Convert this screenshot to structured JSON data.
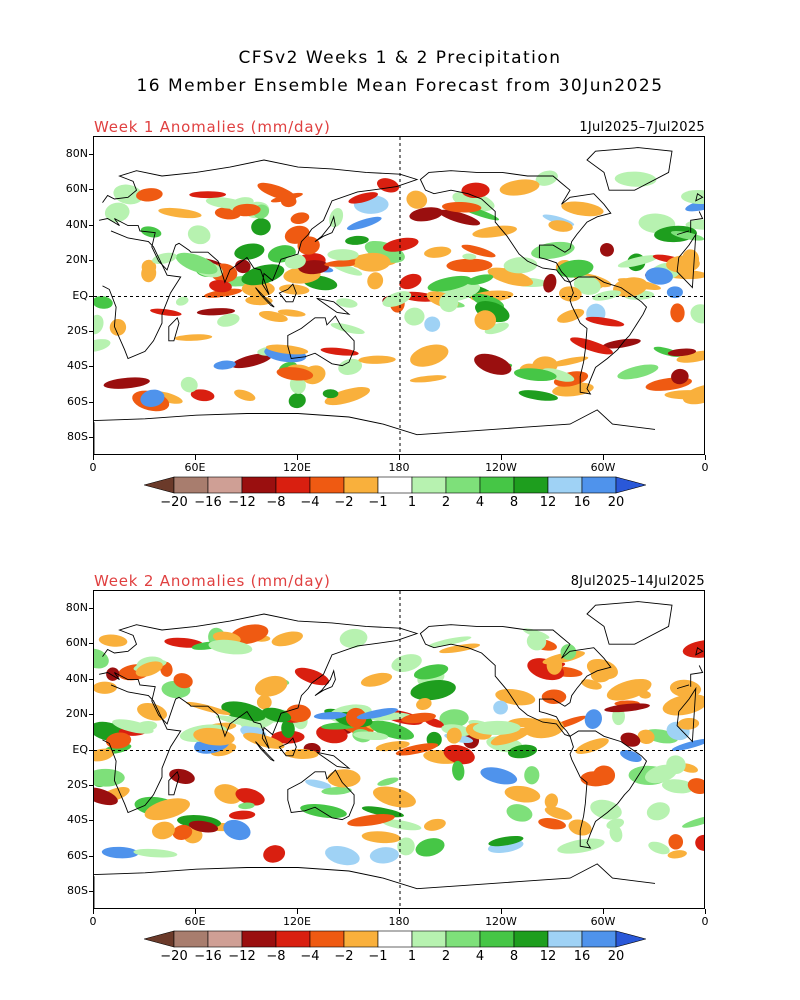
{
  "title_line1": "CFSv2 Weeks 1 & 2 Precipitation",
  "title_line2": "16 Member Ensemble Mean Forecast from 30Jun2025",
  "panels": [
    {
      "title": "Week 1 Anomalies (mm/day)",
      "dates": "1Jul2025–7Jul2025"
    },
    {
      "title": "Week 2 Anomalies (mm/day)",
      "dates": "8Jul2025–14Jul2025"
    }
  ],
  "lat_labels": [
    "80N",
    "60N",
    "40N",
    "20N",
    "EQ",
    "20S",
    "40S",
    "60S",
    "80S"
  ],
  "lon_labels": [
    "0",
    "60E",
    "120E",
    "180",
    "120W",
    "60W",
    "0"
  ],
  "colorbar": {
    "labels": [
      "−20",
      "−16",
      "−12",
      "−8",
      "−4",
      "−2",
      "−1",
      "1",
      "2",
      "4",
      "8",
      "12",
      "16",
      "20"
    ],
    "colors": [
      "#6b3a2a",
      "#a87d6e",
      "#cf9f95",
      "#9a0f0f",
      "#d91f10",
      "#ef5a12",
      "#f9b03c",
      "#ffffff",
      "#b7f2b0",
      "#7ee07a",
      "#46c646",
      "#1e9e1e",
      "#9fd2f5",
      "#4f93ec",
      "#2a58d8"
    ]
  }
}
